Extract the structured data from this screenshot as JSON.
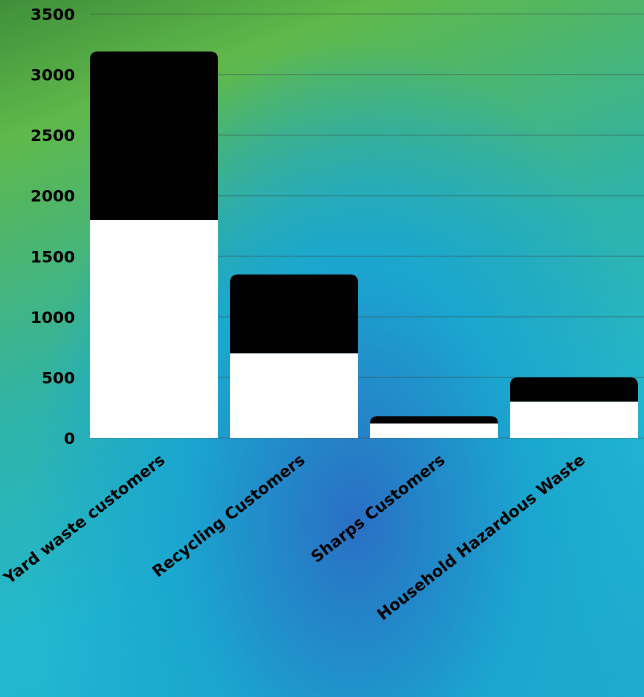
{
  "chart_data": {
    "type": "stacked_bar",
    "categories": [
      "Yard waste customers",
      "Recycling Customers",
      "Sharps Customers",
      "Household Hazardous Waste"
    ],
    "series": [
      {
        "color": "#ffffff",
        "values": [
          1800,
          700,
          120,
          300
        ]
      },
      {
        "color": "#000000",
        "values": [
          1390,
          650,
          60,
          200
        ]
      }
    ],
    "ylim": [
      0,
      3500
    ],
    "yticks": [
      0,
      500,
      1000,
      1500,
      2000,
      2500,
      3000,
      3500
    ],
    "grid": true
  }
}
